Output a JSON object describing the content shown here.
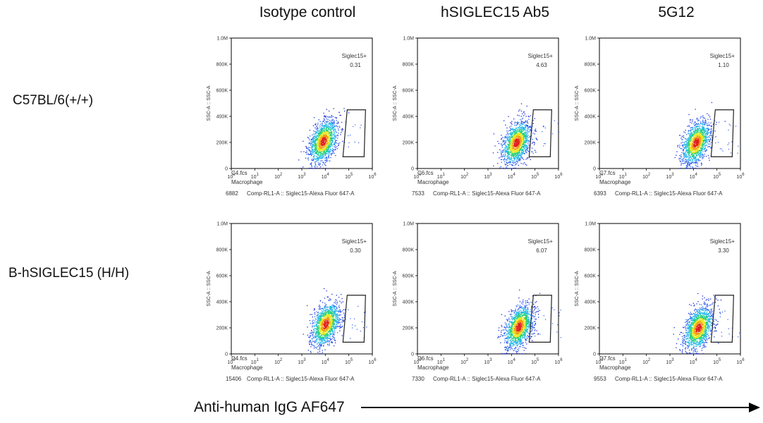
{
  "columns": [
    "Isotype control",
    "hSIGLEC15 Ab5",
    "5G12"
  ],
  "rows": [
    "C57BL/6(+/+)",
    "B-hSIGLEC15 (H/H)"
  ],
  "x_axis_title": "Anti-human IgG AF647",
  "chart_data": {
    "type": "scatter",
    "common": {
      "ylabel": "SSC-A :: SSC-A",
      "xlabel": "Comp-RL1-A :: Siglec15-Alexa Fluor 647-A",
      "population": "Macrophage",
      "gate_name": "Siglec15+",
      "y_ticks": [
        "0",
        "200K",
        "400K",
        "600K",
        "800K",
        "1.0M"
      ],
      "ylim": [
        0,
        1000000
      ],
      "x_scale": "log",
      "x_ticks": [
        "10^0",
        "10^1",
        "10^2",
        "10^3",
        "10^4",
        "10^5",
        "10^6"
      ]
    },
    "panels": [
      {
        "row": "C57BL/6(+/+)",
        "column": "Isotype control",
        "file": "C4.fcs",
        "event_count": "6882",
        "gate_pct": "0.31",
        "center_log_x": 3.9,
        "center_y": 210000
      },
      {
        "row": "C57BL/6(+/+)",
        "column": "hSIGLEC15 Ab5",
        "file": "C6.fcs",
        "event_count": "7533",
        "gate_pct": "4.63",
        "center_log_x": 4.2,
        "center_y": 200000
      },
      {
        "row": "C57BL/6(+/+)",
        "column": "5G12",
        "file": "C7.fcs",
        "event_count": "6393",
        "gate_pct": "1.10",
        "center_log_x": 4.1,
        "center_y": 200000
      },
      {
        "row": "B-hSIGLEC15 (H/H)",
        "column": "Isotype control",
        "file": "D4.fcs",
        "event_count": "15406",
        "gate_pct": "0.30",
        "center_log_x": 4.0,
        "center_y": 230000
      },
      {
        "row": "B-hSIGLEC15 (H/H)",
        "column": "hSIGLEC15 Ab5",
        "file": "D6.fcs",
        "event_count": "7330",
        "gate_pct": "6.07",
        "center_log_x": 4.3,
        "center_y": 210000
      },
      {
        "row": "B-hSIGLEC15 (H/H)",
        "column": "5G12",
        "file": "D7.fcs",
        "event_count": "9553",
        "gate_pct": "3.30",
        "center_log_x": 4.2,
        "center_y": 200000
      }
    ]
  }
}
